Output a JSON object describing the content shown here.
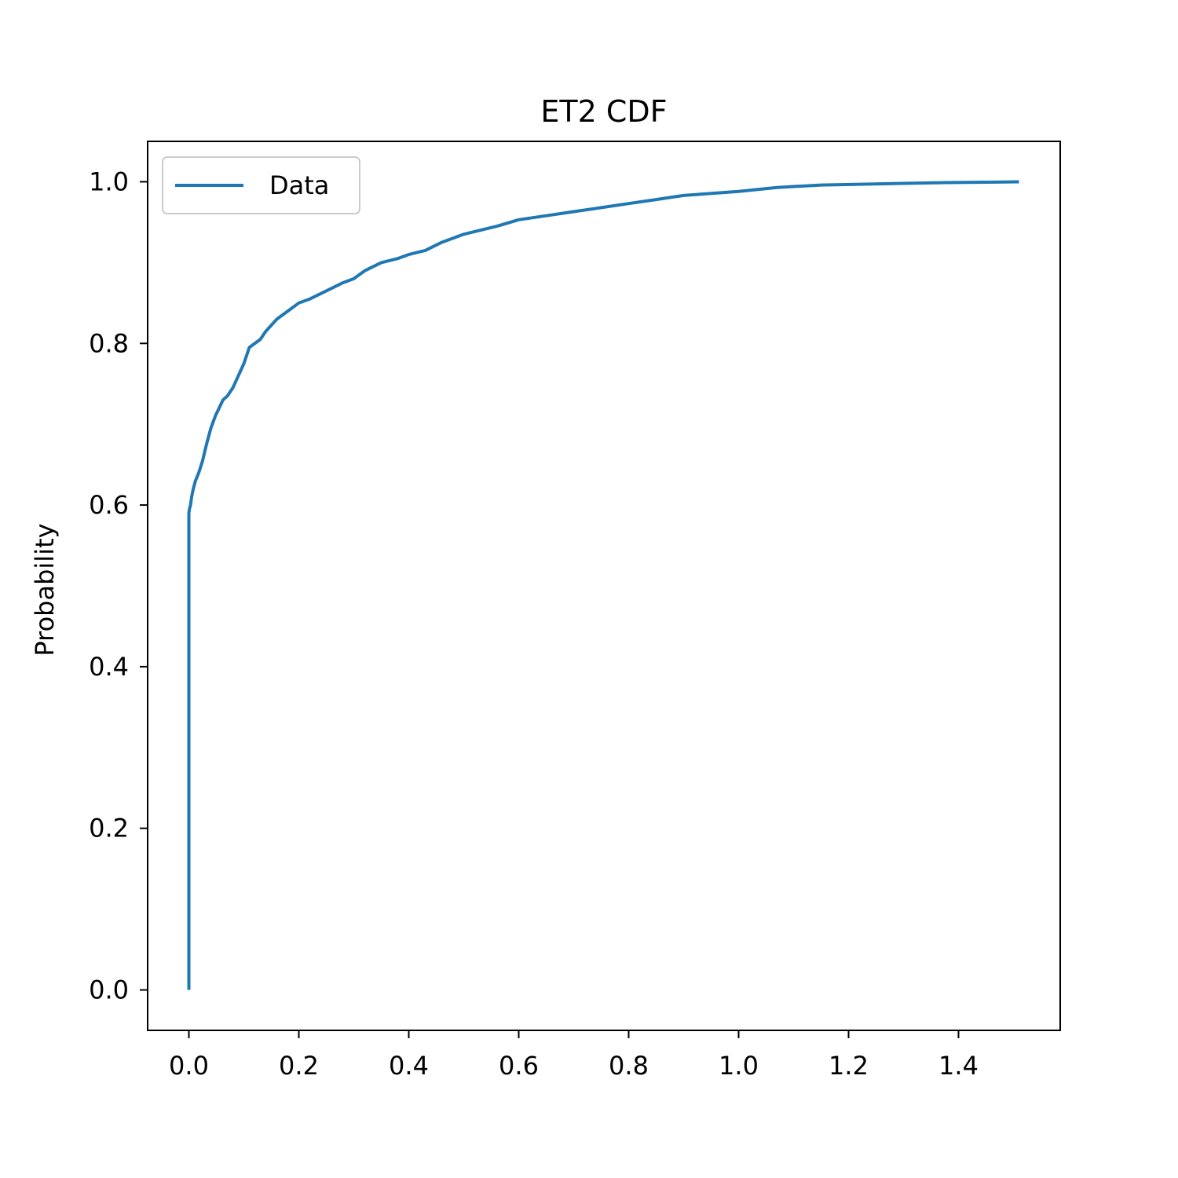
{
  "chart_data": {
    "type": "line",
    "title": "ET2 CDF",
    "xlabel": "",
    "ylabel": "Probability",
    "xlim": [
      -0.075,
      1.585
    ],
    "ylim": [
      -0.05,
      1.05
    ],
    "xticks": [
      0.0,
      0.2,
      0.4,
      0.6,
      0.8,
      1.0,
      1.2,
      1.4
    ],
    "xtick_labels": [
      "0.0",
      "0.2",
      "0.4",
      "0.6",
      "0.8",
      "1.0",
      "1.2",
      "1.4"
    ],
    "yticks": [
      0.0,
      0.2,
      0.4,
      0.6,
      0.8,
      1.0
    ],
    "ytick_labels": [
      "0.0",
      "0.2",
      "0.4",
      "0.6",
      "0.8",
      "1.0"
    ],
    "grid": false,
    "legend_position": "upper-left",
    "series": [
      {
        "name": "Data",
        "color": "#1f77b4",
        "x": [
          0.0,
          0.0,
          0.001,
          0.003,
          0.005,
          0.008,
          0.012,
          0.018,
          0.025,
          0.032,
          0.04,
          0.048,
          0.055,
          0.062,
          0.07,
          0.08,
          0.09,
          0.1,
          0.11,
          0.12,
          0.13,
          0.14,
          0.16,
          0.18,
          0.2,
          0.22,
          0.25,
          0.28,
          0.3,
          0.32,
          0.35,
          0.38,
          0.4,
          0.43,
          0.46,
          0.5,
          0.53,
          0.56,
          0.6,
          0.65,
          0.7,
          0.75,
          0.8,
          0.85,
          0.9,
          1.0,
          1.07,
          1.15,
          1.23,
          1.3,
          1.38,
          1.45,
          1.51
        ],
        "y": [
          0.0,
          0.59,
          0.595,
          0.6,
          0.61,
          0.62,
          0.63,
          0.64,
          0.655,
          0.675,
          0.695,
          0.71,
          0.72,
          0.73,
          0.735,
          0.745,
          0.76,
          0.775,
          0.795,
          0.8,
          0.805,
          0.815,
          0.83,
          0.84,
          0.85,
          0.855,
          0.865,
          0.875,
          0.88,
          0.89,
          0.9,
          0.905,
          0.91,
          0.915,
          0.925,
          0.935,
          0.94,
          0.945,
          0.953,
          0.958,
          0.963,
          0.968,
          0.973,
          0.978,
          0.983,
          0.988,
          0.993,
          0.996,
          0.997,
          0.998,
          0.999,
          0.9995,
          1.0
        ]
      }
    ]
  }
}
